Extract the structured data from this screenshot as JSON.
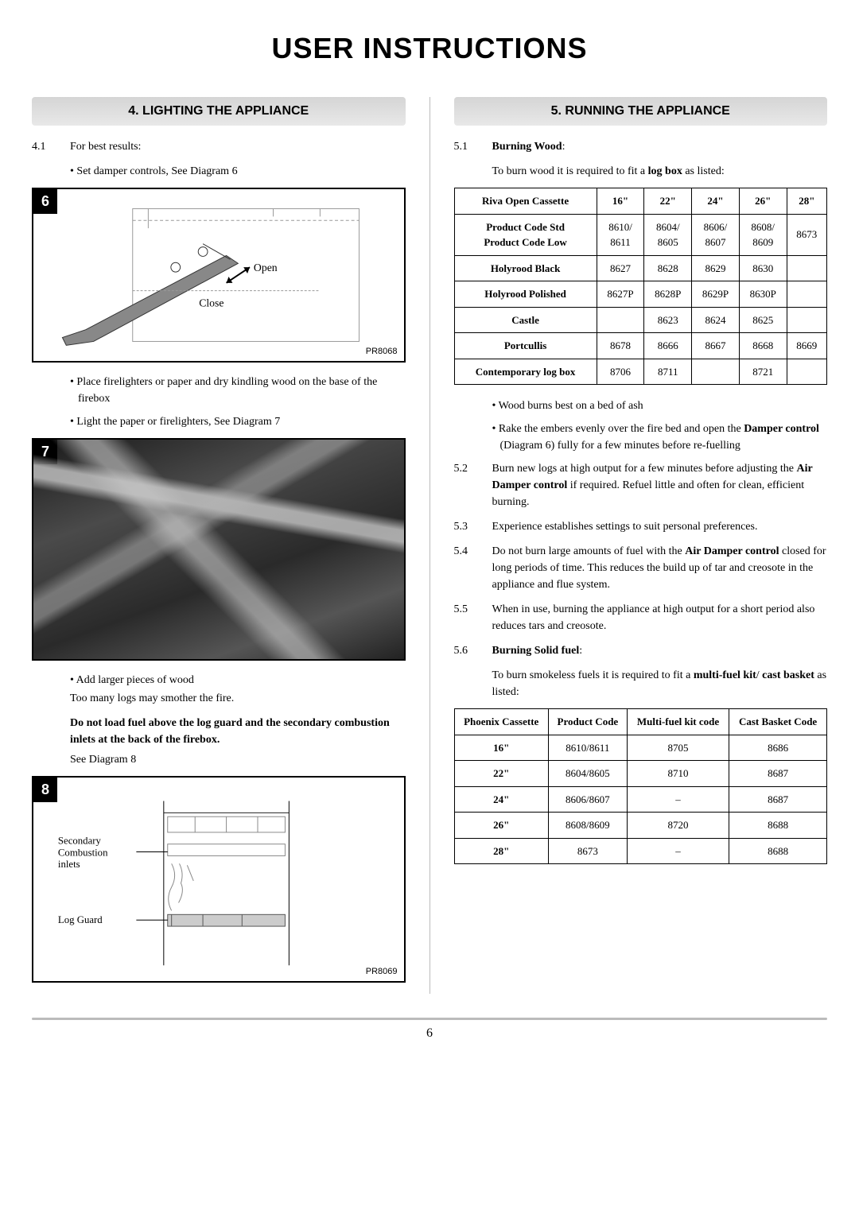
{
  "page": {
    "title": "USER INSTRUCTIONS",
    "number": "6"
  },
  "left": {
    "heading": "4. LIGHTING THE APPLIANCE",
    "s4_1_num": "4.1",
    "s4_1": "For best results:",
    "b1": "Set damper controls, See Diagram 6",
    "d6": {
      "label": "6",
      "open": "Open",
      "close": "Close",
      "ref": "PR8068"
    },
    "b2": "Place firelighters or paper and dry kindling wood on the base of the firebox",
    "b3": "Light the paper or firelighters, See Diagram 7",
    "d7": {
      "label": "7"
    },
    "b4": "Add larger pieces of wood",
    "b4_note": "Too many logs may smother the fire.",
    "warn": "Do not load fuel above the log guard and the secondary combustion inlets at the back of the firebox.",
    "warn_note": "See Diagram 8",
    "d8": {
      "label": "8",
      "sec": "Secondary\nCombustion\ninlets",
      "log": "Log Guard",
      "ref": "PR8069"
    }
  },
  "right": {
    "heading": "5. RUNNING THE APPLIANCE",
    "s5_1_num": "5.1",
    "s5_1": "Burning Wood",
    "s5_1_text": "To burn wood it is required to fit a ",
    "s5_1_bold": "log box",
    "s5_1_tail": " as listed:",
    "table1": {
      "headers": [
        "Riva Open Cassette",
        "16\"",
        "22\"",
        "24\"",
        "26\"",
        "28\""
      ],
      "rows": [
        [
          "Product Code Std\nProduct Code Low",
          "8610/\n8611",
          "8604/\n8605",
          "8606/\n8607",
          "8608/\n8609",
          "8673"
        ],
        [
          "Holyrood Black",
          "8627",
          "8628",
          "8629",
          "8630",
          ""
        ],
        [
          "Holyrood Polished",
          "8627P",
          "8628P",
          "8629P",
          "8630P",
          ""
        ],
        [
          "Castle",
          "",
          "8623",
          "8624",
          "8625",
          ""
        ],
        [
          "Portcullis",
          "8678",
          "8666",
          "8667",
          "8668",
          "8669"
        ],
        [
          "Contemporary log box",
          "8706",
          "8711",
          "",
          "8721",
          ""
        ]
      ]
    },
    "b5": "Wood burns best on a bed of ash",
    "b6_pre": "Rake the embers evenly over the fire bed and open the ",
    "b6_bold": "Damper control",
    "b6_tail": " (Diagram 6) fully for a few minutes before re-fuelling",
    "s5_2_num": "5.2",
    "s5_2_pre": "Burn new logs at high output for a few minutes before adjusting the ",
    "s5_2_bold": "Air Damper control",
    "s5_2_tail": " if required. Refuel little and often for clean, efficient burning.",
    "s5_3_num": "5.3",
    "s5_3": "Experience establishes settings to suit personal preferences.",
    "s5_4_num": "5.4",
    "s5_4_pre": "Do not burn large amounts of fuel with the ",
    "s5_4_bold": "Air Damper control",
    "s5_4_tail": " closed for long periods of time. This reduces the build up of tar and creosote in the appliance and flue system.",
    "s5_5_num": "5.5",
    "s5_5": "When in use, burning the appliance at high output for a short period also reduces tars and creosote.",
    "s5_6_num": "5.6",
    "s5_6": "Burning Solid fuel",
    "s5_6_text": "To burn smokeless fuels it is required to fit a ",
    "s5_6_bold": "multi-fuel kit",
    "s5_6_mid": "/ ",
    "s5_6_bold2": "cast basket",
    "s5_6_tail": " as listed:",
    "table2": {
      "headers": [
        "Phoenix Cassette",
        "Product Code",
        "Multi-fuel kit code",
        "Cast Basket Code"
      ],
      "rows": [
        [
          "16\"",
          "8610/8611",
          "8705",
          "8686"
        ],
        [
          "22\"",
          "8604/8605",
          "8710",
          "8687"
        ],
        [
          "24\"",
          "8606/8607",
          "–",
          "8687"
        ],
        [
          "26\"",
          "8608/8609",
          "8720",
          "8688"
        ],
        [
          "28\"",
          "8673",
          "–",
          "8688"
        ]
      ]
    }
  }
}
